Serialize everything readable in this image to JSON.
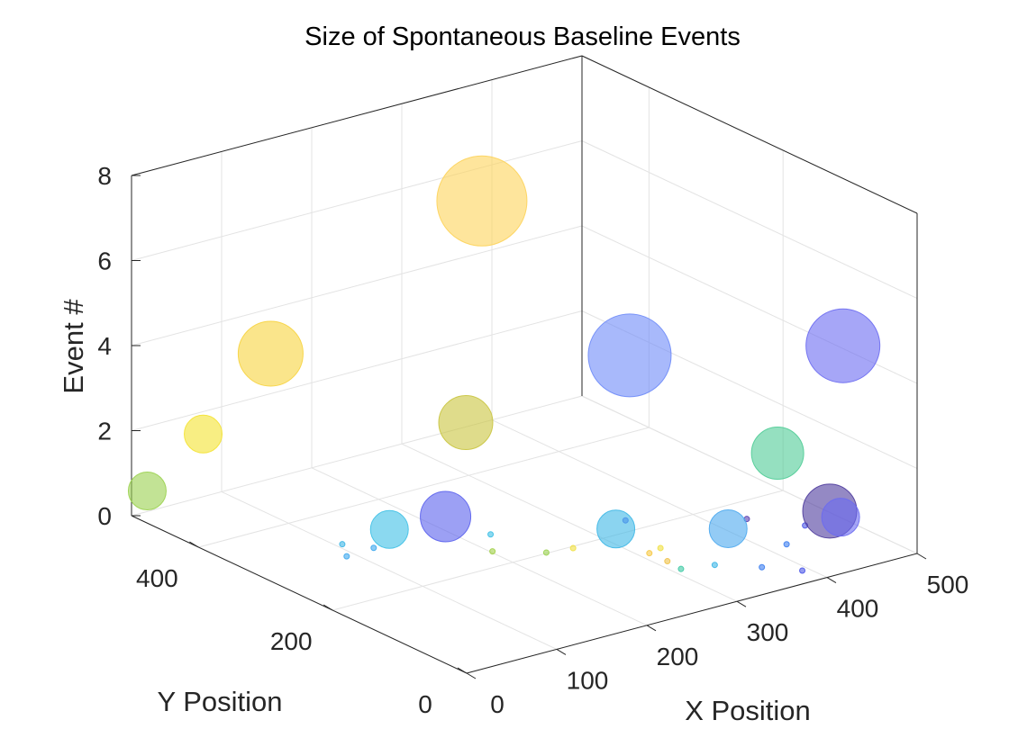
{
  "chart_data": {
    "type": "scatter3d-bubble",
    "title": "Size of Spontaneous Baseline Events",
    "xlabel": "X Position",
    "ylabel": "Y Position",
    "zlabel": "Event #",
    "xlim": [
      0,
      500
    ],
    "ylim": [
      0,
      500
    ],
    "zlim": [
      0,
      8
    ],
    "xticks": [
      0,
      100,
      200,
      300,
      400,
      500
    ],
    "yticks": [
      0,
      200,
      400
    ],
    "zticks": [
      0,
      2,
      4,
      6,
      8
    ],
    "xtick_labels": [
      "0",
      "100",
      "200",
      "300",
      "400",
      "500"
    ],
    "ytick_labels": [
      "0",
      "200",
      "400"
    ],
    "ztick_labels": [
      "0",
      "2",
      "4",
      "6",
      "8"
    ],
    "grid": true,
    "colormap": "parula",
    "points": [
      {
        "x": 255,
        "y": 320,
        "z": 7.3,
        "size": 50,
        "color": "#FDD35A"
      },
      {
        "x": 80,
        "y": 400,
        "z": 4.1,
        "size": 36,
        "color": "#F7D33E"
      },
      {
        "x": 300,
        "y": 160,
        "z": 4.6,
        "size": 46,
        "color": "#6E8BF8"
      },
      {
        "x": 185,
        "y": 250,
        "z": 3.0,
        "size": 30,
        "color": "#C9C43E"
      },
      {
        "x": 20,
        "y": 420,
        "z": 2.4,
        "size": 21,
        "color": "#F4E231"
      },
      {
        "x": 360,
        "y": 20,
        "z": 3.0,
        "size": 29,
        "color": "#4FCC96"
      },
      {
        "x": 440,
        "y": 30,
        "z": 5.0,
        "size": 41,
        "color": "#6B6BF1"
      },
      {
        "x": 430,
        "y": 20,
        "z": 1.1,
        "size": 21,
        "color": "#6A6AF1"
      },
      {
        "x": 320,
        "y": 40,
        "z": 1.3,
        "size": 21,
        "color": "#4BA8EE"
      },
      {
        "x": 240,
        "y": 100,
        "z": 1.3,
        "size": 21,
        "color": "#3DB7E6"
      },
      {
        "x": 170,
        "y": 260,
        "z": 0.8,
        "size": 28,
        "color": "#5A61ED"
      },
      {
        "x": 130,
        "y": 290,
        "z": 0.5,
        "size": 21,
        "color": "#3EC0E6"
      },
      {
        "x": 10,
        "y": 490,
        "z": 0.6,
        "size": 21,
        "color": "#9AD14E"
      },
      {
        "x": 470,
        "y": 90,
        "z": 0.5,
        "size": 30,
        "color": "#4D3A9C"
      },
      {
        "x": 370,
        "y": 20,
        "z": 0.8,
        "size": 3,
        "color": "#3D7EF0"
      },
      {
        "x": 230,
        "y": 20,
        "z": 1.5,
        "size": 3,
        "color": "#F0E043"
      },
      {
        "x": 240,
        "y": 50,
        "z": 1.1,
        "size": 3,
        "color": "#F6C843"
      },
      {
        "x": 260,
        "y": 50,
        "z": 0.8,
        "size": 3,
        "color": "#EFC24A"
      },
      {
        "x": 200,
        "y": 110,
        "z": 1.0,
        "size": 3,
        "color": "#F0E043"
      },
      {
        "x": 200,
        "y": 150,
        "z": 0.6,
        "size": 3,
        "color": "#9AD14E"
      },
      {
        "x": 170,
        "y": 190,
        "z": 0.5,
        "size": 3,
        "color": "#A2D14A"
      },
      {
        "x": 290,
        "y": 70,
        "z": 0.3,
        "size": 3,
        "color": "#3EC9A4"
      },
      {
        "x": 320,
        "y": 60,
        "z": 0.3,
        "size": 3,
        "color": "#3CB6E6"
      },
      {
        "x": 350,
        "y": 30,
        "z": 0.3,
        "size": 3,
        "color": "#3D7EF0"
      },
      {
        "x": 380,
        "y": 10,
        "z": 0.2,
        "size": 3,
        "color": "#4B56E8"
      },
      {
        "x": 450,
        "y": 100,
        "z": 0.2,
        "size": 3,
        "color": "#4B56E8"
      },
      {
        "x": 220,
        "y": 260,
        "z": 0.1,
        "size": 3,
        "color": "#3EC0E6"
      },
      {
        "x": 100,
        "y": 320,
        "z": 0.1,
        "size": 3,
        "color": "#3CB6E6"
      },
      {
        "x": 120,
        "y": 300,
        "z": 0.05,
        "size": 3,
        "color": "#3DA8EE"
      },
      {
        "x": 340,
        "y": 220,
        "z": 0.05,
        "size": 3,
        "color": "#5A61ED"
      },
      {
        "x": 430,
        "y": 160,
        "z": 0.02,
        "size": 3,
        "color": "#5A3FB0"
      },
      {
        "x": 90,
        "y": 300,
        "z": 0.02,
        "size": 3,
        "color": "#3DA8EE"
      }
    ]
  }
}
